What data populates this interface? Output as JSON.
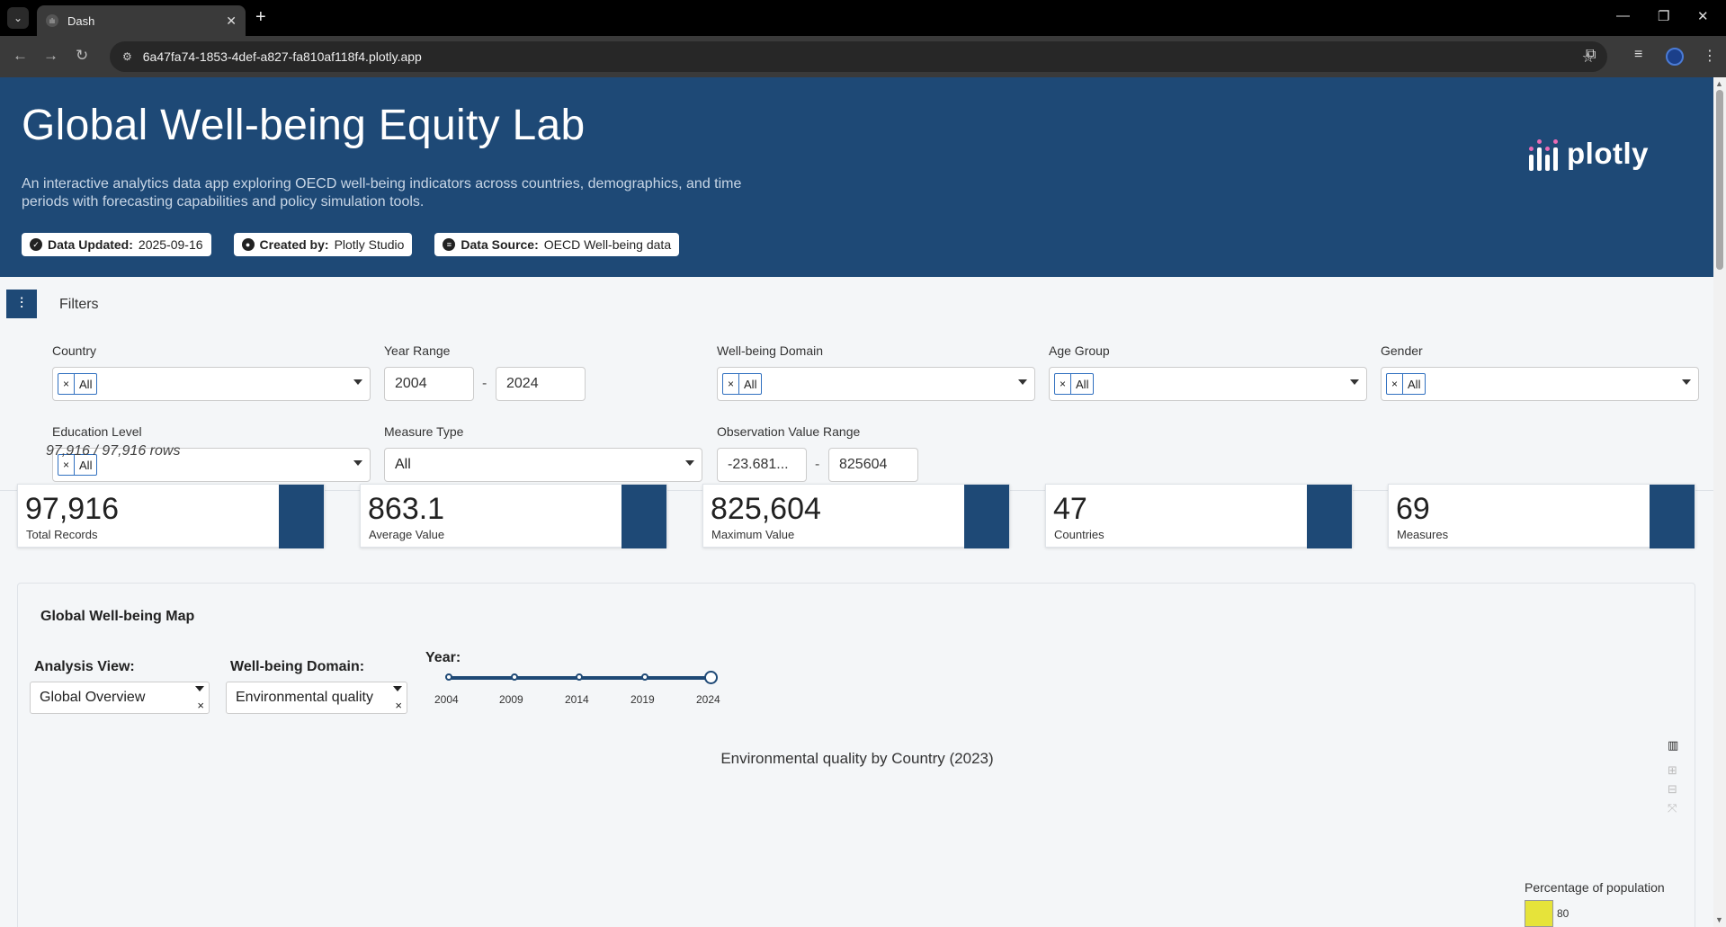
{
  "browser": {
    "tab_title": "Dash",
    "tab_favicon": "plotly-favicon",
    "url": "6a47fa74-1853-4def-a827-fa810af118f4.plotly.app"
  },
  "header": {
    "title": "Global Well-being Equity Lab",
    "description": "An interactive analytics data app exploring OECD well-being indicators across countries, demographics, and time periods with forecasting capabilities and policy simulation tools.",
    "badges": [
      {
        "icon": "check-circle-icon",
        "label": "Data Updated:",
        "value": "2025-09-16"
      },
      {
        "icon": "user-icon",
        "label": "Created by:",
        "value": "Plotly Studio"
      },
      {
        "icon": "database-icon",
        "label": "Data Source:",
        "value": "OECD Well-being data"
      }
    ],
    "logo_text": "plotly",
    "accent_color": "#1e4976"
  },
  "filters": {
    "title": "Filters",
    "country": {
      "label": "Country",
      "chip": "All"
    },
    "year_range": {
      "label": "Year Range",
      "from": "2004",
      "to": "2024"
    },
    "domain": {
      "label": "Well-being Domain",
      "chip": "All"
    },
    "age_group": {
      "label": "Age Group",
      "chip": "All"
    },
    "gender": {
      "label": "Gender",
      "chip": "All"
    },
    "education": {
      "label": "Education Level",
      "chip": "All"
    },
    "measure_type": {
      "label": "Measure Type",
      "value": "All"
    },
    "obs_range": {
      "label": "Observation Value Range",
      "from": "-23.681...",
      "to": "825604"
    },
    "separator": "-",
    "chip_remove": "×"
  },
  "rows_summary": "97,916 / 97,916 rows",
  "kpis": [
    {
      "value": "97,916",
      "label": "Total Records"
    },
    {
      "value": "863.1",
      "label": "Average Value"
    },
    {
      "value": "825,604",
      "label": "Maximum Value"
    },
    {
      "value": "47",
      "label": "Countries"
    },
    {
      "value": "69",
      "label": "Measures"
    }
  ],
  "map_card": {
    "title": "Global Well-being Map",
    "analysis_view": {
      "label": "Analysis View:",
      "value": "Global Overview"
    },
    "domain": {
      "label": "Well-being Domain:",
      "value": "Environmental quality"
    },
    "year_label": "Year:",
    "year_ticks": [
      "2004",
      "2009",
      "2014",
      "2019",
      "2024"
    ],
    "year_selected": "2024",
    "chart_title": "Environmental quality by Country (2023)",
    "legend_title": "Percentage of population",
    "legend_ticks": [
      "80"
    ],
    "legend_color": "#e6e33a",
    "clear": "×"
  }
}
